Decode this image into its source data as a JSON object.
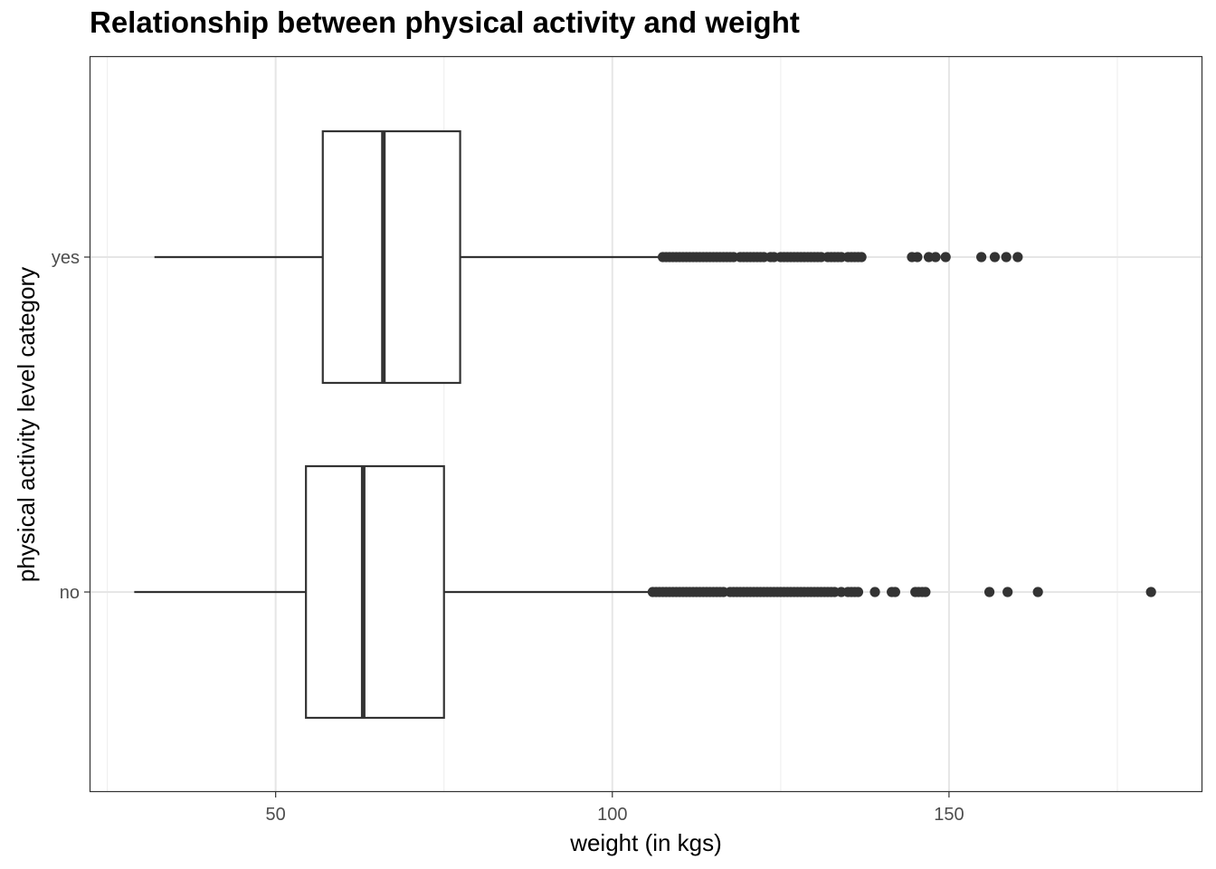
{
  "chart_data": {
    "type": "boxplot",
    "orientation": "horizontal",
    "title": "Relationship between physical activity and weight",
    "xlabel": "weight (in kgs)",
    "ylabel": "physical activity level category",
    "xlim": [
      22.5,
      187.5
    ],
    "xticks": [
      50,
      100,
      150
    ],
    "x_minor_gridlines": [
      25,
      75,
      125,
      175
    ],
    "grid": true,
    "categories": [
      "no",
      "yes"
    ],
    "series": [
      {
        "category": "no",
        "whisker_low": 29,
        "q1": 54.5,
        "median": 63,
        "q3": 75,
        "whisker_high": 106,
        "outliers": [
          106,
          106.5,
          107,
          107.5,
          108,
          108.5,
          109,
          109.5,
          110,
          110.5,
          111,
          111.5,
          112,
          112.5,
          113,
          113.5,
          114,
          114.5,
          115,
          115.5,
          116,
          116.5,
          117.5,
          118,
          118.5,
          119,
          119.5,
          120,
          120.5,
          121,
          121.5,
          122,
          122.5,
          123,
          123.5,
          124,
          124.5,
          125,
          125.5,
          126,
          126.5,
          127,
          127.5,
          128,
          128.5,
          129,
          129.5,
          130,
          130.5,
          131,
          131.5,
          132,
          132.5,
          133,
          134,
          135,
          135.5,
          136,
          136.5,
          139,
          141.5,
          142,
          145,
          145.5,
          146,
          146.5,
          156,
          158.7,
          163.2,
          180
        ]
      },
      {
        "category": "yes",
        "whisker_low": 32,
        "q1": 57,
        "median": 66,
        "q3": 77.4,
        "whisker_high": 107.5,
        "outliers": [
          107.5,
          108,
          108.5,
          109,
          109.5,
          110,
          110.5,
          111,
          111.5,
          112,
          112.5,
          113,
          113.5,
          114,
          114.5,
          115,
          115.5,
          116,
          116.5,
          117,
          117.5,
          118,
          119,
          119.5,
          120,
          120.5,
          121,
          121.5,
          122,
          122.5,
          123.5,
          124,
          125,
          125.5,
          126,
          126.5,
          127,
          127.5,
          128,
          128.5,
          129,
          129.5,
          130,
          130.5,
          131,
          132,
          132.5,
          133,
          133.5,
          134,
          135,
          135.5,
          136,
          136.5,
          137,
          144.5,
          145.3,
          147,
          148,
          149.5,
          154.8,
          156.8,
          158.5,
          160.2
        ]
      }
    ]
  }
}
